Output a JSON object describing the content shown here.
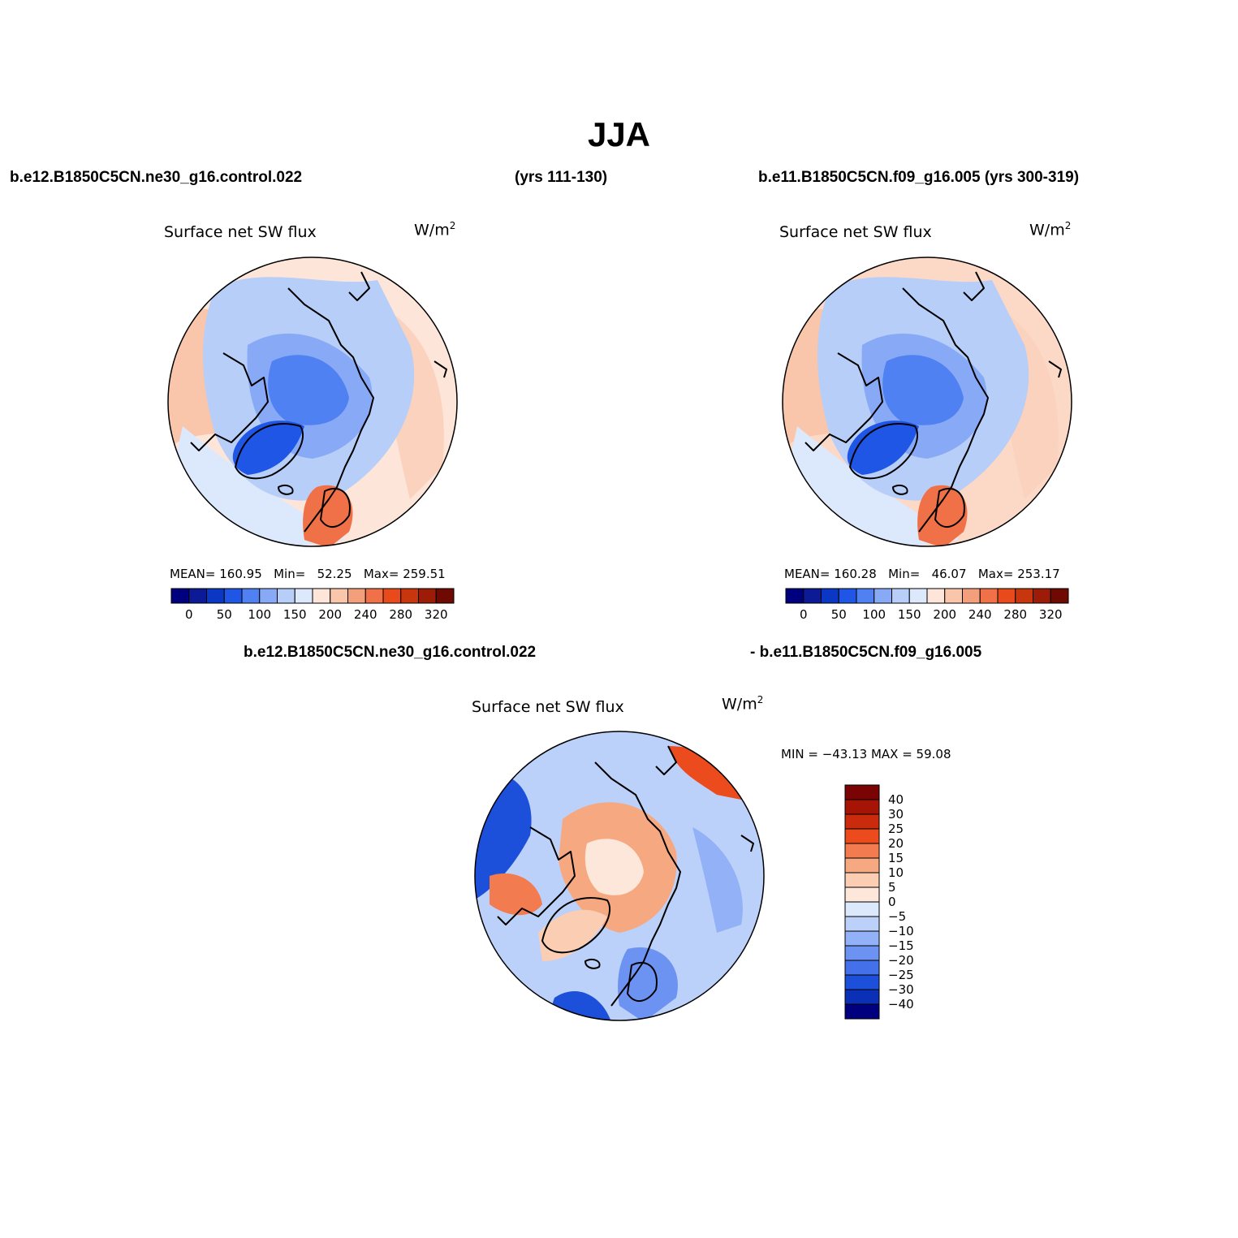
{
  "figure": {
    "title": "JJA",
    "header_left_case": "b.e12.B1850C5CN.ne30_g16.control.022",
    "header_left_years": "(yrs 111-130)",
    "header_right": "b.e11.B1850C5CN.f09_g16.005 (yrs 300-319)",
    "diff_left": "b.e12.B1850C5CN.ne30_g16.control.022",
    "diff_right": "- b.e11.B1850C5CN.f09_g16.005"
  },
  "panels": [
    {
      "id": "panel-1",
      "variable": "Surface net SW flux",
      "units": "W/m",
      "units_sup": "2",
      "mean_label": "MEAN=",
      "mean": "160.95",
      "min_label": "Min=",
      "min": "52.25",
      "max_label": "Max=",
      "max": "259.51"
    },
    {
      "id": "panel-2",
      "variable": "Surface net SW flux",
      "units": "W/m",
      "units_sup": "2",
      "mean_label": "MEAN=",
      "mean": "160.28",
      "min_label": "Min=",
      "min": "46.07",
      "max_label": "Max=",
      "max": "253.17"
    },
    {
      "id": "panel-diff",
      "variable": "Surface net SW flux",
      "units": "W/m",
      "units_sup": "2",
      "minmax_text": "MIN = −43.13 MAX =   59.08"
    }
  ],
  "abs_colorbar": {
    "colors": [
      "#00007f",
      "#0d1a96",
      "#0a38c4",
      "#2056e6",
      "#4f81f2",
      "#88a9f5",
      "#b7cef8",
      "#dce8fb",
      "#fde6d9",
      "#f9c6ac",
      "#f49f7b",
      "#f07047",
      "#e94a1c",
      "#c8360d",
      "#9c1c07",
      "#6e0a02"
    ],
    "tick_labels": [
      "0",
      "50",
      "100",
      "150",
      "200",
      "240",
      "280",
      "320"
    ]
  },
  "diff_colorbar": {
    "colors": [
      "#7a0403",
      "#a51405",
      "#c92b0c",
      "#ec4b1e",
      "#f27b4f",
      "#f6a880",
      "#fbcdb3",
      "#fde7da",
      "#dce8fb",
      "#bcd1f9",
      "#93b1f6",
      "#6c92f2",
      "#4471ea",
      "#1c4fda",
      "#0b2fb5",
      "#00007f"
    ],
    "tick_labels": [
      "40",
      "30",
      "25",
      "20",
      "15",
      "10",
      "5",
      "0",
      "−5",
      "−10",
      "−15",
      "−20",
      "−25",
      "−30",
      "−40"
    ]
  }
}
